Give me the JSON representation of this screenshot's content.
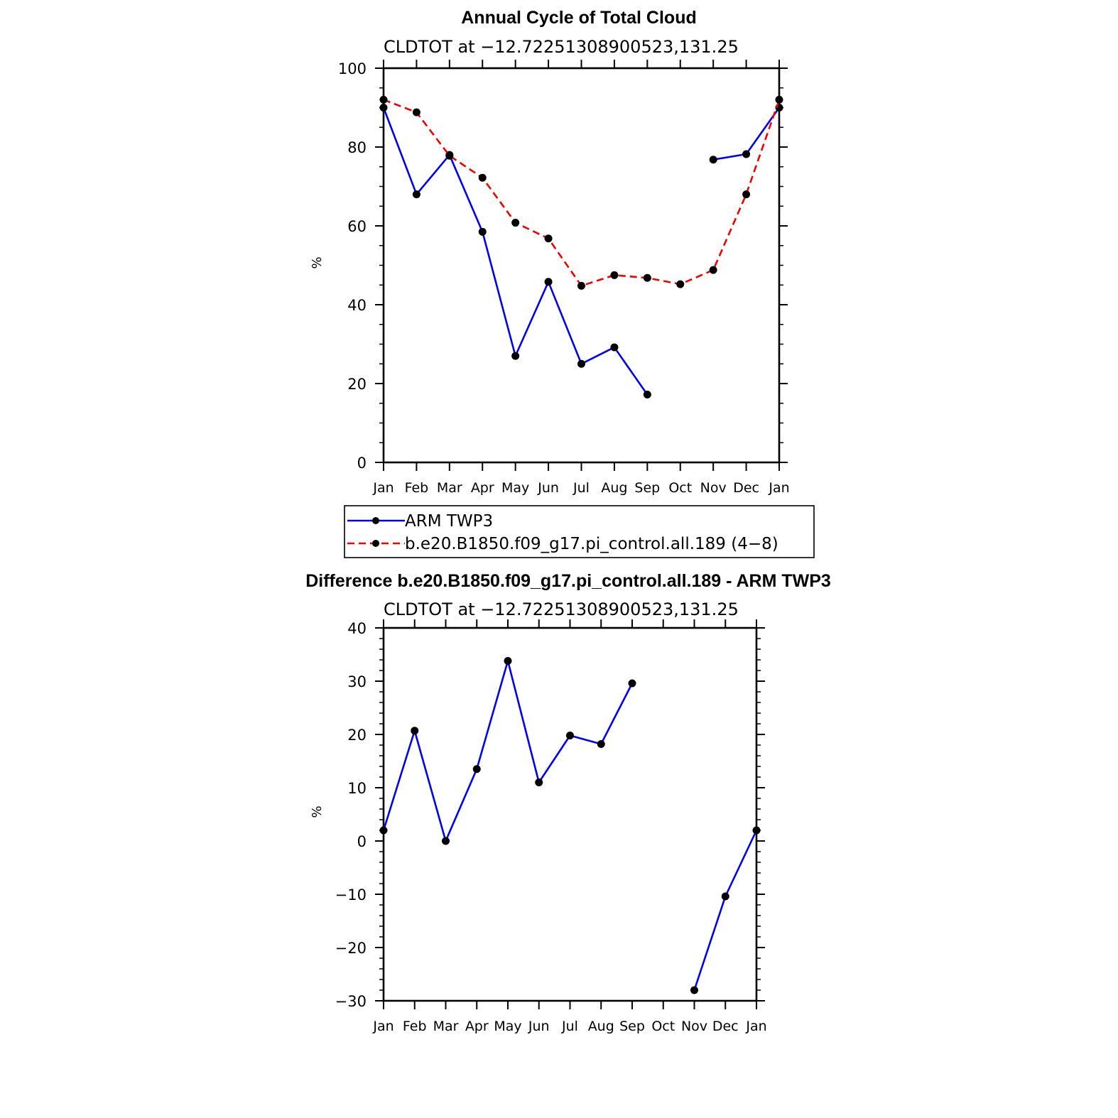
{
  "chart_data": [
    {
      "type": "line",
      "title": "Annual Cycle of Total Cloud",
      "subtitle": "CLDTOT at −12.72251308900523,131.25",
      "xlabel": "",
      "ylabel": "%",
      "x_tick_labels": [
        "Jan",
        "Feb",
        "Mar",
        "Apr",
        "May",
        "Jun",
        "Jul",
        "Aug",
        "Sep",
        "Oct",
        "Nov",
        "Dec",
        "Jan"
      ],
      "ylim": [
        0,
        100
      ],
      "y_ticks": [
        0,
        20,
        40,
        60,
        80,
        100
      ],
      "y_tick_labels": [
        "0",
        "20",
        "40",
        "60",
        "80",
        "100"
      ],
      "series": [
        {
          "name": "ARM TWP3",
          "color": "#0000ee",
          "dash": "solid",
          "values": [
            90,
            68,
            78,
            58.5,
            27,
            45.8,
            25,
            29.2,
            17.2,
            null,
            76.8,
            78.2,
            90
          ]
        },
        {
          "name": "b.e20.B1850.f09_g17.pi_control.all.189 (4−8)",
          "color": "#ee0000",
          "dash": "dashed",
          "values": [
            92,
            88.8,
            77.8,
            72.2,
            60.8,
            56.8,
            44.8,
            47.5,
            46.8,
            45.2,
            48.8,
            68,
            92
          ]
        }
      ],
      "legend": "below"
    },
    {
      "type": "line",
      "title": "Difference b.e20.B1850.f09_g17.pi_control.all.189 - ARM TWP3",
      "subtitle": "CLDTOT at −12.72251308900523,131.25",
      "xlabel": "",
      "ylabel": "%",
      "x_tick_labels": [
        "Jan",
        "Feb",
        "Mar",
        "Apr",
        "May",
        "Jun",
        "Jul",
        "Aug",
        "Sep",
        "Oct",
        "Nov",
        "Dec",
        "Jan"
      ],
      "ylim": [
        -30,
        40
      ],
      "y_ticks": [
        -30,
        -20,
        -10,
        0,
        10,
        20,
        30,
        40
      ],
      "y_tick_labels": [
        "−30",
        "−20",
        "−10",
        "0",
        "10",
        "20",
        "30",
        "40"
      ],
      "series": [
        {
          "color": "#0000ee",
          "dash": "solid",
          "values": [
            2,
            20.7,
            0,
            13.5,
            33.8,
            11,
            19.8,
            18.2,
            29.6,
            null,
            -28,
            -10.4,
            2
          ]
        }
      ]
    }
  ]
}
